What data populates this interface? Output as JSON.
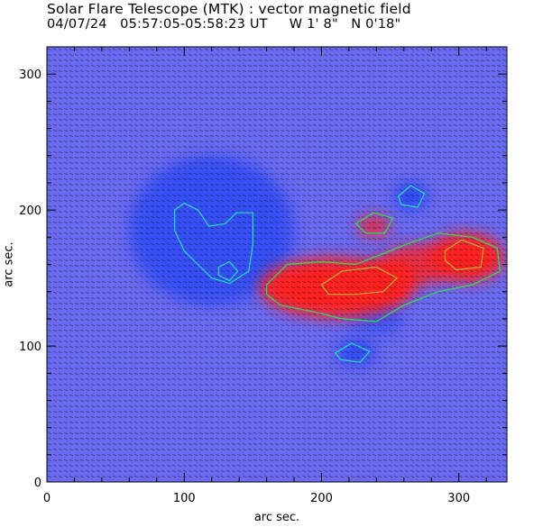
{
  "header": {
    "title": "Solar Flare Telescope (MTK) : vector magnetic field",
    "subtitle": "04/07/24   05:57:05-05:58:23 UT     W 1' 8\"   N 0'18\""
  },
  "colors": {
    "background_field": "#6a6af0",
    "positive_polarity": "#ff2020",
    "negative_polarity": "#2c4af5",
    "contour_green": "#33dd55",
    "contour_cyan": "#22e0c8",
    "contour_olive": "#c0b030",
    "vector_arrows": "#000000"
  },
  "chart_data": {
    "type": "heatmap",
    "description_kind": "vector magnetogram with contours and transverse-field arrows",
    "xlabel": "arc sec.",
    "ylabel": "arc sec.",
    "xlim": [
      0,
      335
    ],
    "ylim": [
      0,
      320
    ],
    "xticks": [
      0,
      100,
      200,
      300
    ],
    "yticks": [
      0,
      100,
      200,
      300
    ],
    "grid": false,
    "legend": "none",
    "regions": [
      {
        "polarity": "negative",
        "cx": 120,
        "cy": 185,
        "rx": 60,
        "ry": 55,
        "strength": 0.8
      },
      {
        "polarity": "negative",
        "cx": 265,
        "cy": 210,
        "rx": 12,
        "ry": 10,
        "strength": 1.0
      },
      {
        "polarity": "negative",
        "cx": 225,
        "cy": 95,
        "rx": 14,
        "ry": 10,
        "strength": 0.9
      },
      {
        "polarity": "negative",
        "cx": 240,
        "cy": 120,
        "rx": 20,
        "ry": 12,
        "strength": 0.6
      },
      {
        "polarity": "positive",
        "cx": 210,
        "cy": 143,
        "rx": 55,
        "ry": 22,
        "strength": 1.0
      },
      {
        "polarity": "positive",
        "cx": 250,
        "cy": 150,
        "rx": 20,
        "ry": 14,
        "strength": 1.0
      },
      {
        "polarity": "positive",
        "cx": 305,
        "cy": 165,
        "rx": 28,
        "ry": 18,
        "strength": 1.0
      },
      {
        "polarity": "positive",
        "cx": 270,
        "cy": 160,
        "rx": 25,
        "ry": 15,
        "strength": 0.8
      },
      {
        "polarity": "positive",
        "cx": 238,
        "cy": 188,
        "rx": 12,
        "ry": 8,
        "strength": 0.8
      }
    ],
    "contours": [
      {
        "level": "negative",
        "color": "cyan",
        "points": [
          [
            93,
            200
          ],
          [
            100,
            205
          ],
          [
            110,
            200
          ],
          [
            118,
            188
          ],
          [
            130,
            190
          ],
          [
            138,
            198
          ],
          [
            150,
            198
          ],
          [
            150,
            175
          ],
          [
            147,
            155
          ],
          [
            133,
            146
          ],
          [
            120,
            150
          ],
          [
            110,
            160
          ],
          [
            100,
            170
          ],
          [
            93,
            185
          ]
        ]
      },
      {
        "level": "negative",
        "color": "cyan",
        "points": [
          [
            125,
            158
          ],
          [
            133,
            162
          ],
          [
            139,
            155
          ],
          [
            133,
            148
          ],
          [
            125,
            152
          ]
        ]
      },
      {
        "level": "negative",
        "color": "cyan",
        "points": [
          [
            256,
            210
          ],
          [
            265,
            218
          ],
          [
            275,
            212
          ],
          [
            270,
            202
          ],
          [
            258,
            204
          ]
        ]
      },
      {
        "level": "negative",
        "color": "cyan",
        "points": [
          [
            210,
            95
          ],
          [
            222,
            102
          ],
          [
            235,
            96
          ],
          [
            228,
            88
          ],
          [
            214,
            90
          ]
        ]
      },
      {
        "level": "positive",
        "color": "green",
        "points": [
          [
            160,
            145
          ],
          [
            175,
            160
          ],
          [
            200,
            162
          ],
          [
            225,
            160
          ],
          [
            245,
            168
          ],
          [
            262,
            175
          ],
          [
            285,
            183
          ],
          [
            310,
            180
          ],
          [
            328,
            172
          ],
          [
            330,
            155
          ],
          [
            310,
            145
          ],
          [
            285,
            140
          ],
          [
            260,
            130
          ],
          [
            240,
            118
          ],
          [
            215,
            120
          ],
          [
            195,
            125
          ],
          [
            170,
            130
          ],
          [
            160,
            138
          ]
        ]
      },
      {
        "level": "positive",
        "color": "green",
        "points": [
          [
            225,
            190
          ],
          [
            238,
            198
          ],
          [
            252,
            194
          ],
          [
            246,
            183
          ],
          [
            232,
            183
          ]
        ]
      },
      {
        "level": "positive",
        "color": "olive",
        "points": [
          [
            200,
            145
          ],
          [
            215,
            155
          ],
          [
            240,
            158
          ],
          [
            255,
            150
          ],
          [
            245,
            140
          ],
          [
            225,
            138
          ],
          [
            205,
            138
          ]
        ]
      },
      {
        "level": "positive",
        "color": "olive",
        "points": [
          [
            290,
            170
          ],
          [
            302,
            178
          ],
          [
            318,
            172
          ],
          [
            316,
            158
          ],
          [
            298,
            156
          ],
          [
            290,
            163
          ]
        ]
      }
    ]
  }
}
